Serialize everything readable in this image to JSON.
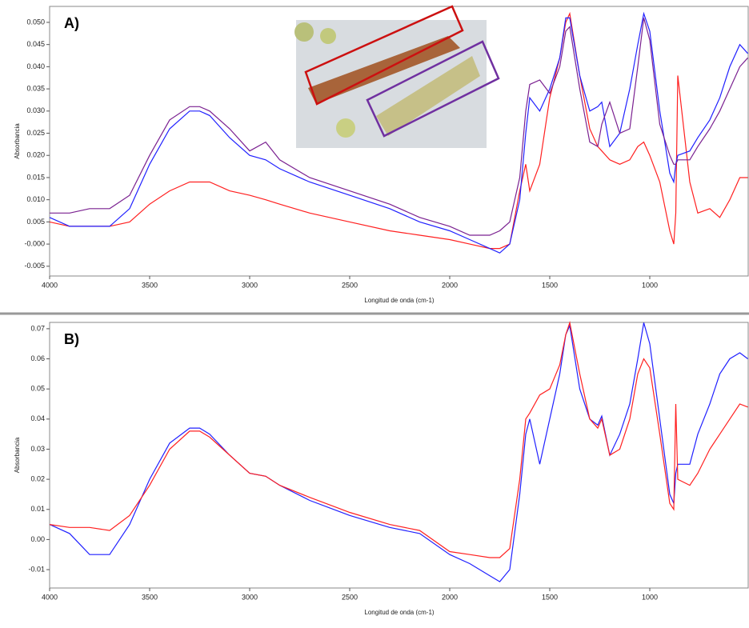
{
  "chart_data": [
    {
      "type": "line",
      "annotation": "A)",
      "xlabel": "Longitud de onda (cm-1)",
      "ylabel": "Absorbancia",
      "xlim": [
        4000,
        504
      ],
      "xticks": [
        4000,
        3500,
        3000,
        2500,
        2000,
        1500,
        1000
      ],
      "ylim": [
        -0.0072,
        0.0536
      ],
      "yticks": [
        {
          "value": -0.005,
          "label": "-0.005"
        },
        {
          "value": 0,
          "label": "-0.000"
        },
        {
          "value": 0.005,
          "label": "0.005"
        },
        {
          "value": 0.01,
          "label": "0.010"
        },
        {
          "value": 0.015,
          "label": "0.015"
        },
        {
          "value": 0.02,
          "label": "0.020"
        },
        {
          "value": 0.025,
          "label": "0.025"
        },
        {
          "value": 0.03,
          "label": "0.030"
        },
        {
          "value": 0.035,
          "label": "0.035"
        },
        {
          "value": 0.04,
          "label": "0.040"
        },
        {
          "value": 0.045,
          "label": "0.045"
        },
        {
          "value": 0.05,
          "label": "0.050"
        }
      ],
      "x": [
        4000,
        3900,
        3800,
        3700,
        3600,
        3500,
        3400,
        3300,
        3250,
        3200,
        3100,
        3000,
        2920,
        2850,
        2700,
        2500,
        2300,
        2150,
        2000,
        1900,
        1800,
        1750,
        1700,
        1650,
        1620,
        1600,
        1550,
        1500,
        1450,
        1420,
        1400,
        1350,
        1300,
        1260,
        1240,
        1200,
        1150,
        1100,
        1060,
        1030,
        1000,
        950,
        900,
        880,
        870,
        860,
        800,
        760,
        700,
        650,
        600,
        550,
        510
      ],
      "series": [
        {
          "color": "#ff2020",
          "values": [
            0.005,
            0.004,
            0.004,
            0.004,
            0.005,
            0.009,
            0.012,
            0.014,
            0.014,
            0.014,
            0.012,
            0.011,
            0.01,
            0.009,
            0.007,
            0.005,
            0.003,
            0.002,
            0.001,
            0.0,
            -0.001,
            -0.001,
            0.0,
            0.012,
            0.018,
            0.012,
            0.018,
            0.033,
            0.042,
            0.05,
            0.052,
            0.038,
            0.026,
            0.022,
            0.021,
            0.019,
            0.018,
            0.019,
            0.022,
            0.023,
            0.02,
            0.014,
            0.003,
            0.0,
            0.007,
            0.038,
            0.014,
            0.007,
            0.008,
            0.006,
            0.01,
            0.015,
            0.015
          ]
        },
        {
          "color": "#2020ff",
          "values": [
            0.006,
            0.004,
            0.004,
            0.004,
            0.008,
            0.018,
            0.026,
            0.03,
            0.03,
            0.029,
            0.024,
            0.02,
            0.019,
            0.017,
            0.014,
            0.011,
            0.008,
            0.005,
            0.003,
            0.001,
            -0.001,
            -0.002,
            0.0,
            0.01,
            0.025,
            0.033,
            0.03,
            0.035,
            0.042,
            0.051,
            0.051,
            0.038,
            0.03,
            0.031,
            0.032,
            0.022,
            0.025,
            0.035,
            0.045,
            0.052,
            0.048,
            0.03,
            0.016,
            0.014,
            0.018,
            0.02,
            0.021,
            0.024,
            0.028,
            0.033,
            0.04,
            0.045,
            0.043
          ]
        },
        {
          "color": "#7a2090",
          "values": [
            0.007,
            0.007,
            0.008,
            0.008,
            0.011,
            0.02,
            0.028,
            0.031,
            0.031,
            0.03,
            0.026,
            0.021,
            0.023,
            0.019,
            0.015,
            0.012,
            0.009,
            0.006,
            0.004,
            0.002,
            0.002,
            0.003,
            0.005,
            0.015,
            0.03,
            0.036,
            0.037,
            0.034,
            0.04,
            0.048,
            0.049,
            0.035,
            0.023,
            0.022,
            0.027,
            0.032,
            0.025,
            0.026,
            0.04,
            0.051,
            0.046,
            0.027,
            0.02,
            0.018,
            0.018,
            0.019,
            0.019,
            0.022,
            0.026,
            0.03,
            0.035,
            0.04,
            0.042
          ]
        }
      ]
    },
    {
      "type": "line",
      "annotation": "B)",
      "xlabel": "Longitud de onda (cm-1)",
      "ylabel": "Absorbancia",
      "xlim": [
        4000,
        504
      ],
      "xticks": [
        4000,
        3500,
        3000,
        2500,
        2000,
        1500,
        1000
      ],
      "ylim": [
        -0.0161,
        0.0721
      ],
      "yticks": [
        {
          "value": -0.01,
          "label": "-0.01"
        },
        {
          "value": 0,
          "label": "0.00"
        },
        {
          "value": 0.01,
          "label": "0.01"
        },
        {
          "value": 0.02,
          "label": "0.02"
        },
        {
          "value": 0.03,
          "label": "0.03"
        },
        {
          "value": 0.04,
          "label": "0.04"
        },
        {
          "value": 0.05,
          "label": "0.05"
        },
        {
          "value": 0.06,
          "label": "0.06"
        },
        {
          "value": 0.07,
          "label": "0.07"
        }
      ],
      "x": [
        4000,
        3900,
        3800,
        3700,
        3600,
        3500,
        3400,
        3300,
        3250,
        3200,
        3100,
        3000,
        2920,
        2850,
        2700,
        2500,
        2300,
        2150,
        2000,
        1900,
        1800,
        1750,
        1700,
        1650,
        1620,
        1600,
        1550,
        1500,
        1450,
        1420,
        1400,
        1350,
        1300,
        1260,
        1240,
        1200,
        1150,
        1100,
        1060,
        1030,
        1000,
        950,
        900,
        880,
        870,
        860,
        800,
        760,
        700,
        650,
        600,
        550,
        510
      ],
      "series": [
        {
          "color": "#2020ff",
          "values": [
            0.005,
            0.002,
            -0.005,
            -0.005,
            0.005,
            0.02,
            0.032,
            0.037,
            0.037,
            0.035,
            0.028,
            0.022,
            0.021,
            0.018,
            0.013,
            0.008,
            0.004,
            0.002,
            -0.005,
            -0.008,
            -0.012,
            -0.014,
            -0.01,
            0.015,
            0.035,
            0.04,
            0.025,
            0.04,
            0.055,
            0.068,
            0.071,
            0.05,
            0.04,
            0.038,
            0.041,
            0.028,
            0.035,
            0.045,
            0.06,
            0.072,
            0.065,
            0.04,
            0.015,
            0.012,
            0.022,
            0.025,
            0.025,
            0.035,
            0.045,
            0.055,
            0.06,
            0.062,
            0.06
          ]
        },
        {
          "color": "#ff2020",
          "values": [
            0.005,
            0.004,
            0.004,
            0.003,
            0.008,
            0.018,
            0.03,
            0.036,
            0.036,
            0.034,
            0.028,
            0.022,
            0.021,
            0.018,
            0.014,
            0.009,
            0.005,
            0.003,
            -0.004,
            -0.005,
            -0.006,
            -0.006,
            -0.003,
            0.02,
            0.04,
            0.042,
            0.048,
            0.05,
            0.058,
            0.068,
            0.072,
            0.055,
            0.04,
            0.037,
            0.04,
            0.028,
            0.03,
            0.04,
            0.055,
            0.06,
            0.057,
            0.035,
            0.012,
            0.01,
            0.045,
            0.02,
            0.018,
            0.022,
            0.03,
            0.035,
            0.04,
            0.045,
            0.044
          ]
        }
      ]
    }
  ]
}
